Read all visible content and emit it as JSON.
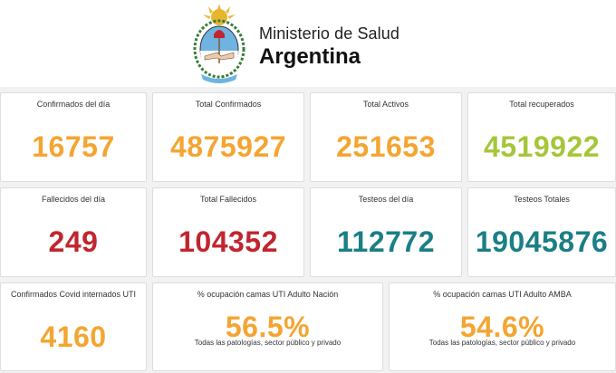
{
  "header": {
    "ministry": "Ministerio de Salud",
    "country": "Argentina",
    "logo_icon": "coat-of-arms-icon"
  },
  "colors": {
    "orange": "#f4a531",
    "green": "#a6c63a",
    "red": "#c0262f",
    "teal": "#1b7f85"
  },
  "row1": [
    {
      "label": "Confirmados del día",
      "value": "16757"
    },
    {
      "label": "Total Confirmados",
      "value": "4875927"
    },
    {
      "label": "Total Activos",
      "value": "251653"
    },
    {
      "label": "Total recuperados",
      "value": "4519922"
    }
  ],
  "row2": [
    {
      "label": "Fallecidos del día",
      "value": "249"
    },
    {
      "label": "Total Fallecidos",
      "value": "104352"
    },
    {
      "label": "Testeos del día",
      "value": "112772"
    },
    {
      "label": "Testeos Totales",
      "value": "19045876"
    }
  ],
  "row3": [
    {
      "label": "Confirmados Covid internados UTI",
      "value": "4160"
    },
    {
      "label": "% ocupación camas UTI Adulto Nación",
      "value": "56.5%",
      "sub": "Todas las patologías, sector público y privado"
    },
    {
      "label": "% ocupación camas UTI Adulto AMBA",
      "value": "54.6%",
      "sub": "Todas las patologías, sector público y privado"
    }
  ]
}
